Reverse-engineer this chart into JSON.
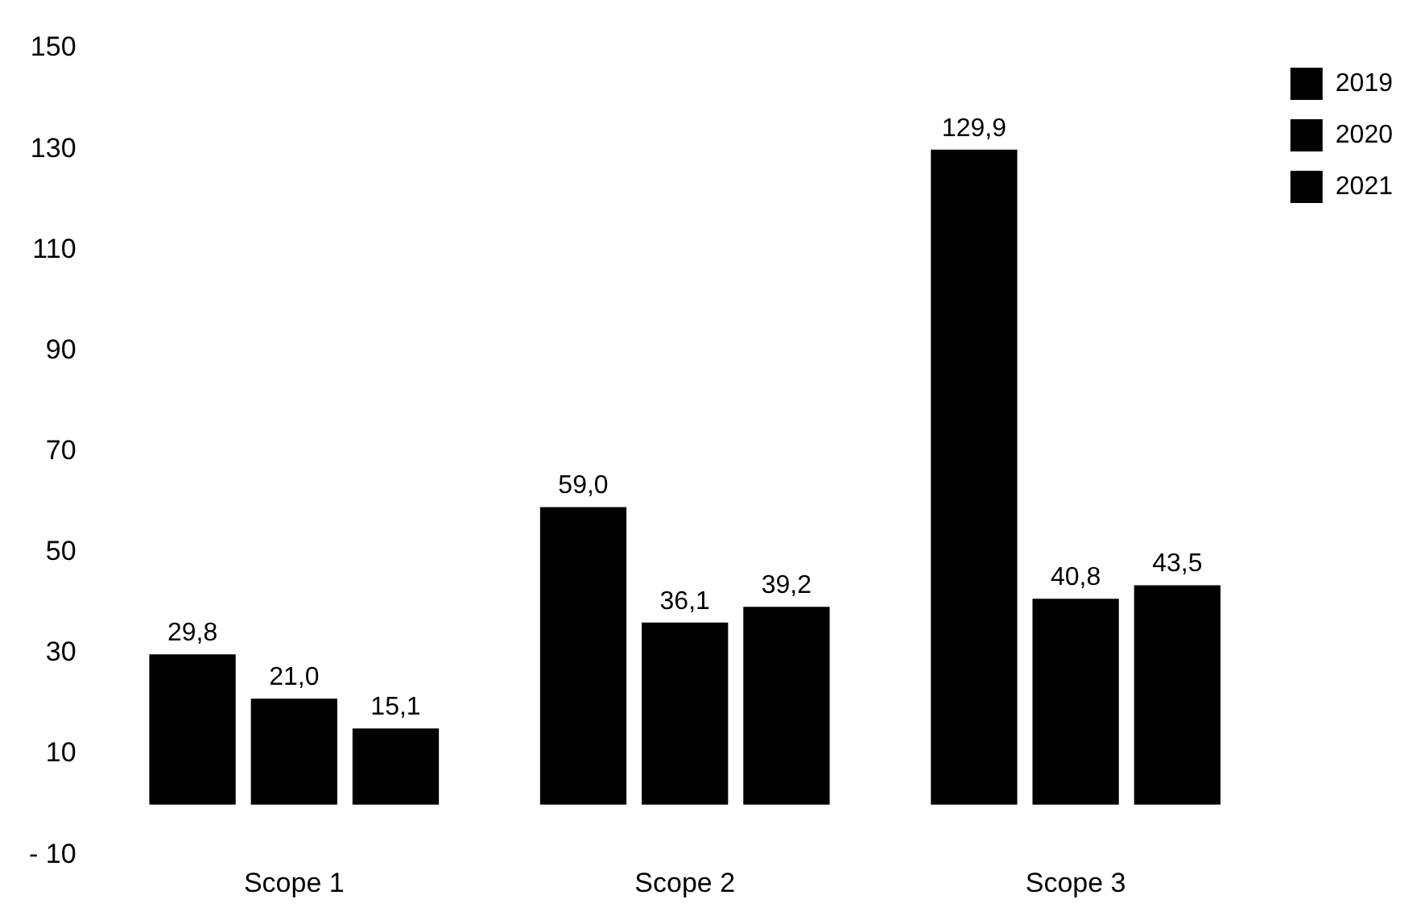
{
  "chart_data": {
    "type": "bar",
    "categories": [
      "Scope 1",
      "Scope 2",
      "Scope 3"
    ],
    "series": [
      {
        "name": "2019",
        "color": "#000000",
        "values": [
          29.8,
          59.0,
          129.9
        ],
        "value_labels": [
          "29,8",
          "59,0",
          "129,9"
        ]
      },
      {
        "name": "2020",
        "color": "#000000",
        "values": [
          21.0,
          36.1,
          40.8
        ],
        "value_labels": [
          "21,0",
          "36,1",
          "40,8"
        ]
      },
      {
        "name": "2021",
        "color": "#000000",
        "values": [
          15.1,
          39.2,
          43.5
        ],
        "value_labels": [
          "15,1",
          "39,2",
          "43,5"
        ]
      }
    ],
    "ylim": [
      -10,
      150
    ],
    "yticks": [
      {
        "value": -10,
        "label": "- 10"
      },
      10,
      30,
      50,
      70,
      90,
      110,
      130,
      150
    ],
    "grid": false,
    "legend": "top right"
  }
}
